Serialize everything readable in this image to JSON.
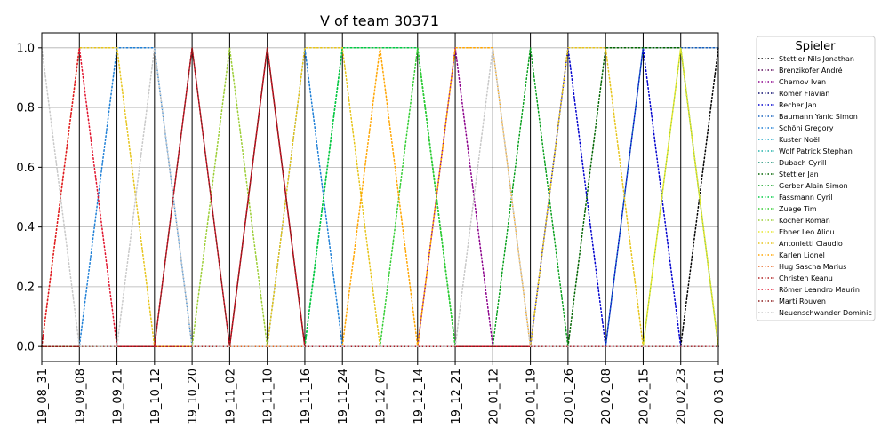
{
  "chart_data": {
    "type": "line",
    "title": "V of team 30371",
    "xlabel": "",
    "ylabel": "",
    "ylim": [
      -0.05,
      1.05
    ],
    "yticks": [
      "0.0",
      "0.2",
      "0.4",
      "0.6",
      "0.8",
      "1.0"
    ],
    "grid": "horizontal",
    "line_style": "dotted",
    "legend": {
      "title": "Spieler",
      "position": "right"
    },
    "categories": [
      "19_08_31",
      "19_09_08",
      "19_09_21",
      "19_10_12",
      "19_10_20",
      "19_11_02",
      "19_11_10",
      "19_11_16",
      "19_11_24",
      "19_12_07",
      "19_12_14",
      "19_12_21",
      "20_01_12",
      "20_01_19",
      "20_01_26",
      "20_02_08",
      "20_02_15",
      "20_02_23",
      "20_03_01"
    ],
    "series": [
      {
        "name": "Stettler Nils Jonathan",
        "color": "#000000",
        "values": [
          0,
          0,
          0,
          0,
          0,
          0,
          0,
          0,
          0,
          0,
          0,
          0,
          0,
          0,
          0,
          0,
          0,
          0,
          1
        ]
      },
      {
        "name": "Brenzikofer André",
        "color": "#5c0a5c",
        "values": [
          0,
          0,
          0,
          0,
          0,
          0,
          0,
          0,
          0,
          0,
          0,
          0,
          0,
          0,
          0,
          0,
          0,
          0,
          0
        ]
      },
      {
        "name": "Chernov Ivan",
        "color": "#8b008b",
        "values": [
          0,
          0,
          0,
          0,
          0,
          0,
          0,
          0,
          0,
          0,
          0,
          1,
          0,
          0,
          0,
          0,
          0,
          0,
          0
        ]
      },
      {
        "name": "Römer Flavian",
        "color": "#0a0a6e",
        "values": [
          0,
          0,
          0,
          0,
          0,
          0,
          0,
          0,
          0,
          0,
          0,
          0,
          0,
          0,
          0,
          0,
          0,
          0,
          0
        ]
      },
      {
        "name": "Recher Jan",
        "color": "#0000cd",
        "values": [
          0,
          0,
          0,
          0,
          0,
          0,
          0,
          0,
          0,
          0,
          0,
          0,
          0,
          0,
          1,
          0,
          1,
          0,
          0
        ]
      },
      {
        "name": "Baumann Yanic Simon",
        "color": "#1560bd",
        "values": [
          0,
          0,
          0,
          0,
          0,
          0,
          0,
          0,
          0,
          0,
          0,
          0,
          0,
          0,
          0,
          0,
          1,
          1,
          1
        ]
      },
      {
        "name": "Schöni Gregory",
        "color": "#1e7fd6",
        "values": [
          0,
          0,
          1,
          1,
          0,
          0,
          0,
          1,
          0,
          0,
          0,
          0,
          0,
          0,
          0,
          0,
          0,
          0,
          0
        ]
      },
      {
        "name": "Kuster Noël",
        "color": "#1aa6c8",
        "values": [
          0,
          0,
          0,
          0,
          0,
          0,
          0,
          0,
          0,
          0,
          0,
          0,
          0,
          0,
          0,
          0,
          0,
          0,
          0
        ]
      },
      {
        "name": "Wolf Patrick Stephan",
        "color": "#20b2aa",
        "values": [
          0,
          0,
          0,
          0,
          0,
          0,
          0,
          0,
          0,
          0,
          0,
          0,
          0,
          0,
          0,
          0,
          0,
          0,
          0
        ]
      },
      {
        "name": "Dubach Cyrill",
        "color": "#0f8a6e",
        "values": [
          0,
          0,
          0,
          0,
          0,
          0,
          0,
          0,
          0,
          0,
          0,
          0,
          0,
          0,
          0,
          0,
          0,
          0,
          0
        ]
      },
      {
        "name": "Stettler Jan",
        "color": "#006400",
        "values": [
          0,
          0,
          0,
          0,
          0,
          0,
          0,
          0,
          0,
          0,
          0,
          0,
          0,
          0,
          0,
          1,
          1,
          1,
          0
        ]
      },
      {
        "name": "Gerber Alain Simon",
        "color": "#0aa01e",
        "values": [
          0,
          0,
          0,
          0,
          0,
          0,
          0,
          0,
          1,
          1,
          1,
          0,
          0,
          1,
          0,
          0,
          0,
          0,
          0
        ]
      },
      {
        "name": "Fassmann Cyril",
        "color": "#00cc44",
        "values": [
          0,
          0,
          0,
          0,
          0,
          0,
          0,
          0,
          1,
          1,
          1,
          0,
          0,
          0,
          0,
          0,
          0,
          0,
          0
        ]
      },
      {
        "name": "Zuege Tim",
        "color": "#32cd32",
        "values": [
          0,
          0,
          0,
          0,
          0,
          0,
          0,
          0,
          0,
          0,
          1,
          0,
          0,
          0,
          0,
          0,
          0,
          0,
          0
        ]
      },
      {
        "name": "Kocher Roman",
        "color": "#9acd32",
        "values": [
          0,
          0,
          0,
          0,
          0,
          1,
          0,
          0,
          0,
          0,
          0,
          0,
          0,
          0,
          0,
          0,
          0,
          1,
          0
        ]
      },
      {
        "name": "Ebner Leo Aliou",
        "color": "#e6e62e",
        "values": [
          0,
          0,
          0,
          0,
          0,
          0,
          0,
          0,
          0,
          0,
          0,
          0,
          0,
          0,
          0,
          0,
          0,
          1,
          0
        ]
      },
      {
        "name": "Antonietti Claudio",
        "color": "#e6c419",
        "values": [
          0,
          1,
          1,
          0,
          0,
          0,
          0,
          1,
          1,
          0,
          0,
          0,
          0,
          0,
          1,
          1,
          0,
          0,
          0
        ]
      },
      {
        "name": "Karlen Lionel",
        "color": "#ffa500",
        "values": [
          0,
          0,
          0,
          0,
          0,
          0,
          0,
          0,
          0,
          1,
          0,
          1,
          1,
          0,
          0,
          0,
          0,
          0,
          0
        ]
      },
      {
        "name": "Hug Sascha Marius",
        "color": "#e8621a",
        "values": [
          0,
          0,
          0,
          0,
          0,
          0,
          0,
          0,
          0,
          0,
          0,
          0,
          0,
          0,
          0,
          0,
          0,
          0,
          0
        ]
      },
      {
        "name": "Christen Keanu",
        "color": "#b22222",
        "values": [
          0,
          0,
          0,
          0,
          0,
          0,
          1,
          0,
          0,
          0,
          0,
          0,
          0,
          0,
          0,
          0,
          0,
          0,
          0
        ]
      },
      {
        "name": "Römer Leandro Maurin",
        "color": "#e0102a",
        "values": [
          0,
          1,
          0,
          0,
          1,
          0,
          1,
          0,
          0,
          0,
          0,
          0,
          0,
          0,
          0,
          0,
          0,
          0,
          0
        ]
      },
      {
        "name": "Marti Rouven",
        "color": "#8b1a1a",
        "values": [
          0,
          0,
          0,
          0,
          1,
          0,
          1,
          0,
          0,
          0,
          0,
          0,
          0,
          0,
          0,
          0,
          0,
          0,
          0
        ]
      },
      {
        "name": "Neuenschwander Dominic",
        "color": "#c8c8c8",
        "values": [
          1,
          0,
          0,
          1,
          0,
          0,
          0,
          0,
          0,
          0,
          0,
          0,
          1,
          0,
          0,
          0,
          0,
          0,
          0
        ]
      }
    ]
  }
}
